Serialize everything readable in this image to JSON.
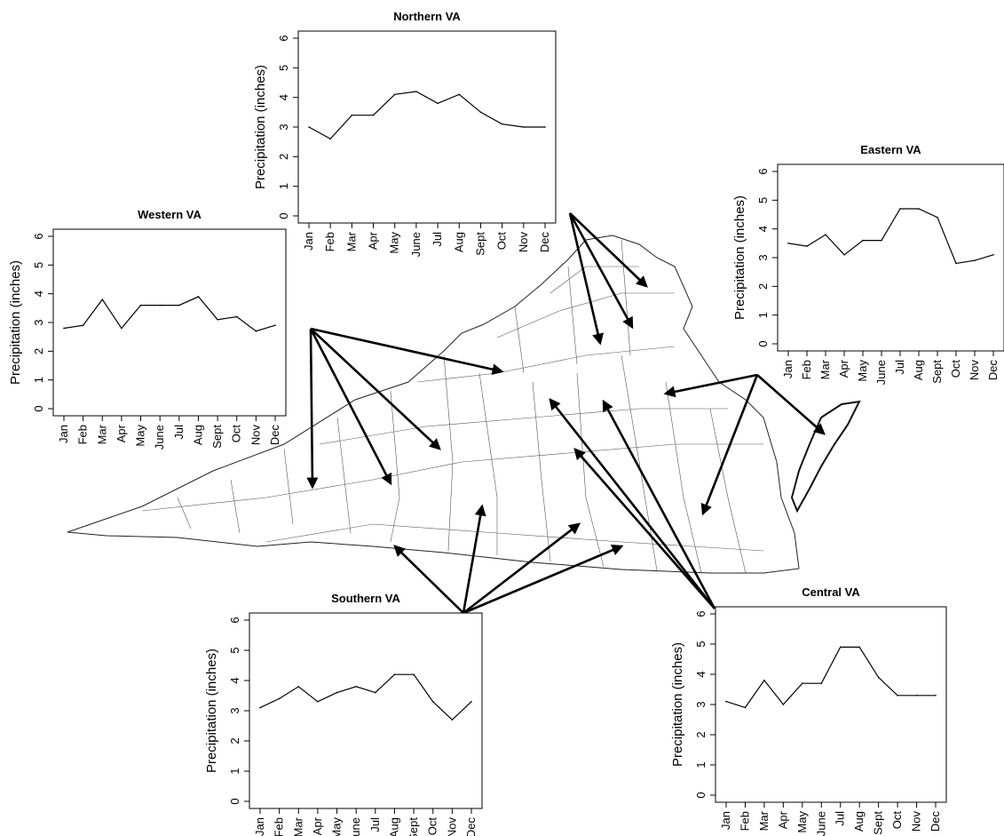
{
  "figure": {
    "month_labels": [
      "Jan",
      "Feb",
      "Mar",
      "Apr",
      "May",
      "June",
      "Jul",
      "Aug",
      "Sept",
      "Oct",
      "Nov",
      "Dec"
    ],
    "y_ticks": [
      0,
      1,
      2,
      3,
      4,
      5,
      6
    ]
  },
  "chart_data": [
    {
      "type": "line",
      "title": "Northern VA",
      "xlabel": "",
      "ylabel": "Precipitation (inches)",
      "categories": [
        "Jan",
        "Feb",
        "Mar",
        "Apr",
        "May",
        "June",
        "Jul",
        "Aug",
        "Sept",
        "Oct",
        "Nov",
        "Dec"
      ],
      "values": [
        3.0,
        2.6,
        3.4,
        3.4,
        4.1,
        4.2,
        3.8,
        4.1,
        3.5,
        3.1,
        3.0,
        3.0
      ],
      "ylim": [
        0,
        6
      ],
      "grid": false
    },
    {
      "type": "line",
      "title": "Western VA",
      "xlabel": "",
      "ylabel": "Precipitation (inches)",
      "categories": [
        "Jan",
        "Feb",
        "Mar",
        "Apr",
        "May",
        "June",
        "Jul",
        "Aug",
        "Sept",
        "Oct",
        "Nov",
        "Dec"
      ],
      "values": [
        2.8,
        2.9,
        3.8,
        2.8,
        3.6,
        3.6,
        3.6,
        3.9,
        3.1,
        3.2,
        2.7,
        2.9
      ],
      "ylim": [
        0,
        6
      ],
      "grid": false
    },
    {
      "type": "line",
      "title": "Eastern VA",
      "xlabel": "",
      "ylabel": "Precipitation (inches)",
      "categories": [
        "Jan",
        "Feb",
        "Mar",
        "Apr",
        "May",
        "June",
        "Jul",
        "Aug",
        "Sept",
        "Oct",
        "Nov",
        "Dec"
      ],
      "values": [
        3.5,
        3.4,
        3.8,
        3.1,
        3.6,
        3.6,
        4.7,
        4.7,
        4.4,
        2.8,
        2.9,
        3.1
      ],
      "ylim": [
        0,
        6
      ],
      "grid": false
    },
    {
      "type": "line",
      "title": "Southern VA",
      "xlabel": "",
      "ylabel": "Precipitation (inches)",
      "categories": [
        "Jan",
        "Feb",
        "Mar",
        "Apr",
        "May",
        "June",
        "Jul",
        "Aug",
        "Sept",
        "Oct",
        "Nov",
        "Dec"
      ],
      "values": [
        3.1,
        3.4,
        3.8,
        3.3,
        3.6,
        3.8,
        3.6,
        4.2,
        4.2,
        3.3,
        2.7,
        3.3
      ],
      "ylim": [
        0,
        6
      ],
      "grid": false
    },
    {
      "type": "line",
      "title": "Central VA",
      "xlabel": "",
      "ylabel": "Precipitation (inches)",
      "categories": [
        "Jan",
        "Feb",
        "Mar",
        "Apr",
        "May",
        "June",
        "Jul",
        "Aug",
        "Sept",
        "Oct",
        "Nov",
        "Dec"
      ],
      "values": [
        3.1,
        2.9,
        3.8,
        3.0,
        3.7,
        3.7,
        4.9,
        4.9,
        3.9,
        3.3,
        3.3,
        3.3
      ],
      "ylim": [
        0,
        6
      ],
      "grid": false
    }
  ],
  "colors": {
    "line": "#000000",
    "map_stroke": "#333333",
    "arrow": "#000000"
  }
}
